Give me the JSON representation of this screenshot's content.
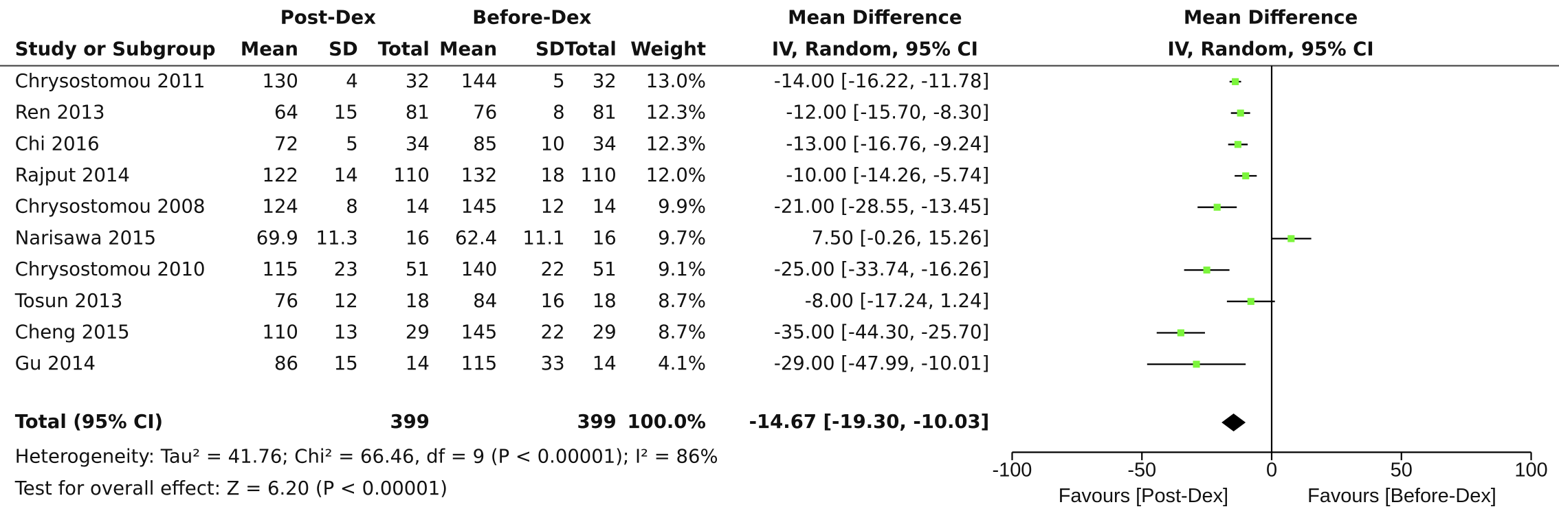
{
  "chart_data": {
    "type": "forest",
    "group_headers": [
      "Post-Dex",
      "Before-Dex"
    ],
    "columns": [
      "Study or Subgroup",
      "Mean",
      "SD",
      "Total",
      "Mean",
      "SD",
      "Total",
      "Weight"
    ],
    "ci_header": [
      "Mean Difference",
      "IV, Random, 95% CI"
    ],
    "plot_header": [
      "Mean Difference",
      "IV, Random, 95% CI"
    ],
    "studies": [
      {
        "name": "Chrysostomou 2011",
        "post_mean": 130,
        "post_sd": 4,
        "post_total": 32,
        "before_mean": 144,
        "before_sd": 5,
        "before_total": 32,
        "weight": 13.0,
        "weight_label": "13.0%",
        "md": -14.0,
        "ci_low": -16.22,
        "ci_high": -11.78,
        "md_label": "-14.00 [-16.22, -11.78]"
      },
      {
        "name": "Ren 2013",
        "post_mean": 64,
        "post_sd": 15,
        "post_total": 81,
        "before_mean": 76,
        "before_sd": 8,
        "before_total": 81,
        "weight": 12.3,
        "weight_label": "12.3%",
        "md": -12.0,
        "ci_low": -15.7,
        "ci_high": -8.3,
        "md_label": "-12.00 [-15.70, -8.30]"
      },
      {
        "name": "Chi 2016",
        "post_mean": 72,
        "post_sd": 5,
        "post_total": 34,
        "before_mean": 85,
        "before_sd": 10,
        "before_total": 34,
        "weight": 12.3,
        "weight_label": "12.3%",
        "md": -13.0,
        "ci_low": -16.76,
        "ci_high": -9.24,
        "md_label": "-13.00 [-16.76, -9.24]"
      },
      {
        "name": "Rajput 2014",
        "post_mean": 122,
        "post_sd": 14,
        "post_total": 110,
        "before_mean": 132,
        "before_sd": 18,
        "before_total": 110,
        "weight": 12.0,
        "weight_label": "12.0%",
        "md": -10.0,
        "ci_low": -14.26,
        "ci_high": -5.74,
        "md_label": "-10.00 [-14.26, -5.74]"
      },
      {
        "name": "Chrysostomou 2008",
        "post_mean": 124,
        "post_sd": 8,
        "post_total": 14,
        "before_mean": 145,
        "before_sd": 12,
        "before_total": 14,
        "weight": 9.9,
        "weight_label": "9.9%",
        "md": -21.0,
        "ci_low": -28.55,
        "ci_high": -13.45,
        "md_label": "-21.00 [-28.55, -13.45]"
      },
      {
        "name": "Narisawa 2015",
        "post_mean": 69.9,
        "post_sd": 11.3,
        "post_total": 16,
        "before_mean": 62.4,
        "before_sd": 11.1,
        "before_total": 16,
        "weight": 9.7,
        "weight_label": "9.7%",
        "md": 7.5,
        "ci_low": -0.26,
        "ci_high": 15.26,
        "md_label": "7.50 [-0.26, 15.26]"
      },
      {
        "name": "Chrysostomou 2010",
        "post_mean": 115,
        "post_sd": 23,
        "post_total": 51,
        "before_mean": 140,
        "before_sd": 22,
        "before_total": 51,
        "weight": 9.1,
        "weight_label": "9.1%",
        "md": -25.0,
        "ci_low": -33.74,
        "ci_high": -16.26,
        "md_label": "-25.00 [-33.74, -16.26]"
      },
      {
        "name": "Tosun 2013",
        "post_mean": 76,
        "post_sd": 12,
        "post_total": 18,
        "before_mean": 84,
        "before_sd": 16,
        "before_total": 18,
        "weight": 8.7,
        "weight_label": "8.7%",
        "md": -8.0,
        "ci_low": -17.24,
        "ci_high": 1.24,
        "md_label": "-8.00 [-17.24, 1.24]"
      },
      {
        "name": "Cheng 2015",
        "post_mean": 110,
        "post_sd": 13,
        "post_total": 29,
        "before_mean": 145,
        "before_sd": 22,
        "before_total": 29,
        "weight": 8.7,
        "weight_label": "8.7%",
        "md": -35.0,
        "ci_low": -44.3,
        "ci_high": -25.7,
        "md_label": "-35.00 [-44.30, -25.70]"
      },
      {
        "name": "Gu 2014",
        "post_mean": 86,
        "post_sd": 15,
        "post_total": 14,
        "before_mean": 115,
        "before_sd": 33,
        "before_total": 14,
        "weight": 4.1,
        "weight_label": "4.1%",
        "md": -29.0,
        "ci_low": -47.99,
        "ci_high": -10.01,
        "md_label": "-29.00 [-47.99, -10.01]"
      }
    ],
    "total": {
      "name": "Total (95% CI)",
      "post_total": 399,
      "before_total": 399,
      "weight": 100.0,
      "weight_label": "100.0%",
      "md": -14.67,
      "ci_low": -19.3,
      "ci_high": -10.03,
      "md_label": "-14.67 [-19.30, -10.03]"
    },
    "heterogeneity": "Heterogeneity: Tau² = 41.76; Chi² = 66.46, df = 9 (P < 0.00001); I² = 86%",
    "overall_effect": "Test for overall effect: Z = 6.20 (P < 0.00001)",
    "xlim": [
      -100,
      100
    ],
    "xticks": [
      -100,
      -50,
      0,
      50,
      100
    ],
    "favours": [
      "Favours [Post-Dex]",
      "Favours [Before-Dex]"
    ],
    "point_color": "#7cf53c",
    "line_color": "#000000"
  }
}
